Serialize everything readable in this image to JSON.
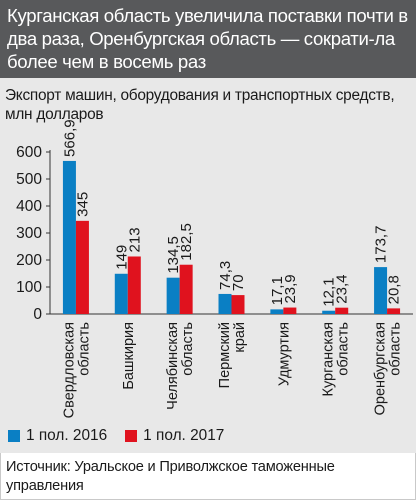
{
  "header": {
    "title": "Курганская область увеличила поставки почти в два раза, Оренбургская область — сократи-ла более чем в восемь раз"
  },
  "subtitle": "Экспорт машин, оборудования и транспортных средств, млн долларов",
  "legend": {
    "items": [
      {
        "label": "1 пол. 2016",
        "color": "#0a7fc4"
      },
      {
        "label": "1 пол. 2017",
        "color": "#e0121e"
      }
    ]
  },
  "source": "Источник: Уральское и Приволжское таможенные управления",
  "colors": {
    "header_bg": "#58595b",
    "panel_bg": "#e8e8e8",
    "series_2016": "#0a7fc4",
    "series_2017": "#e0121e"
  },
  "chart_data": {
    "type": "bar",
    "categories": [
      [
        "Свердловская",
        "область"
      ],
      [
        "Башкирия"
      ],
      [
        "Челябинская",
        "область"
      ],
      [
        "Пермский",
        "край"
      ],
      [
        "Удмуртия"
      ],
      [
        "Курганская",
        "область"
      ],
      [
        "Оренбургская",
        "область"
      ]
    ],
    "series": [
      {
        "name": "1 пол. 2016",
        "values": [
          566.9,
          149,
          134.5,
          74.3,
          17.1,
          12.1,
          173.7
        ],
        "labels": [
          "566,9",
          "149",
          "134,5",
          "74,3",
          "17,1",
          "12,1",
          "173,7"
        ]
      },
      {
        "name": "1 пол. 2017",
        "values": [
          345,
          213,
          182.5,
          70,
          23.9,
          23.4,
          20.8
        ],
        "labels": [
          "345",
          "213",
          "182,5",
          "70",
          "23,9",
          "23,4",
          "20,8"
        ]
      }
    ],
    "yticks": [
      "0",
      "100",
      "200",
      "300",
      "400",
      "500",
      "600"
    ],
    "ylim": [
      0,
      600
    ],
    "grid": false,
    "legend_position": "bottom-left"
  }
}
